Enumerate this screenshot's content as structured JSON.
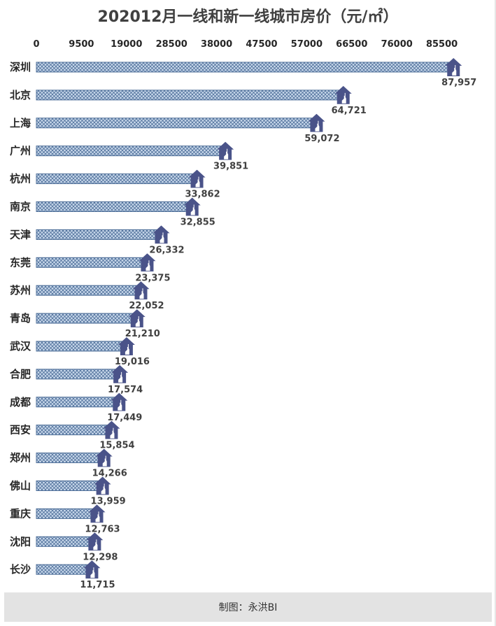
{
  "title": "202012月一线和新一线城市房价（元/㎡）",
  "footer": "制图：永洪BI",
  "chart_data": {
    "type": "bar",
    "orientation": "horizontal",
    "title": "202012月一线和新一线城市房价（元/㎡）",
    "xlabel": "",
    "ylabel": "",
    "xlim": [
      0,
      95000
    ],
    "x_ticks": [
      0,
      9500,
      19000,
      28500,
      38000,
      47500,
      57000,
      66500,
      76000,
      85500
    ],
    "x_axis_position": "top",
    "grid": false,
    "categories": [
      "深圳",
      "北京",
      "上海",
      "广州",
      "杭州",
      "南京",
      "天津",
      "东莞",
      "苏州",
      "青岛",
      "武汉",
      "合肥",
      "成都",
      "西安",
      "郑州",
      "佛山",
      "重庆",
      "沈阳",
      "长沙"
    ],
    "values": [
      87957,
      64721,
      59072,
      39851,
      33862,
      32855,
      26332,
      23375,
      22052,
      21210,
      19016,
      17574,
      17449,
      15854,
      14266,
      13959,
      12763,
      12298,
      11715
    ],
    "data_labels": [
      "87,957",
      "64,721",
      "59,072",
      "39,851",
      "33,862",
      "32,855",
      "26,332",
      "23,375",
      "22,052",
      "21,210",
      "19,016",
      "17,574",
      "17,449",
      "15,854",
      "14,266",
      "13,959",
      "12,763",
      "12,298",
      "11,715"
    ],
    "marker_icon": "house-icon",
    "colors": {
      "bar_fill": "#c9d9ec",
      "bar_pattern": "#4a6b96",
      "marker": "#4a5389",
      "text": "#404040"
    }
  }
}
